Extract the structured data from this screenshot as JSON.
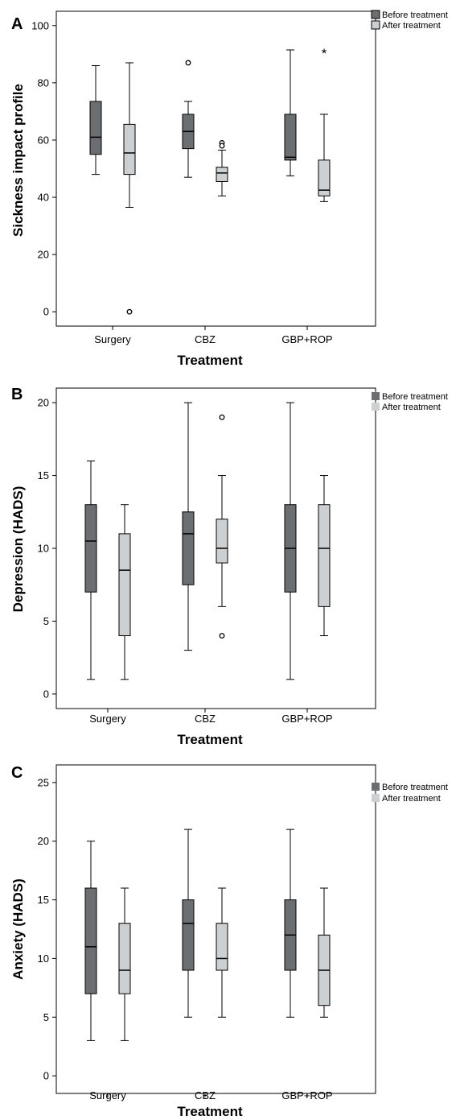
{
  "chart_data": [
    {
      "type": "box",
      "panel": "A",
      "xlabel": "Treatment",
      "ylabel": "Sickness impact profile",
      "ylim": [
        -5,
        105
      ],
      "yticks": [
        0,
        20,
        40,
        60,
        80,
        100
      ],
      "categories": [
        "Surgery",
        "CBZ",
        "GBP+ROP"
      ],
      "legend": {
        "position": "top-right",
        "entries": [
          "Before treatment",
          "After treatment"
        ]
      },
      "series": [
        {
          "name": "Before treatment",
          "color": "#6b6f72",
          "boxes": [
            {
              "min": 48,
              "q1": 55,
              "median": 61,
              "q3": 73.5,
              "max": 86,
              "outliers": [],
              "extremes": []
            },
            {
              "min": 47,
              "q1": 57,
              "median": 63,
              "q3": 69,
              "max": 73.5,
              "outliers": [
                87
              ],
              "extremes": []
            },
            {
              "min": 47.5,
              "q1": 53,
              "median": 54,
              "q3": 69,
              "max": 91.5,
              "outliers": [],
              "extremes": []
            }
          ]
        },
        {
          "name": "After treatment",
          "color": "#cdd0d3",
          "boxes": [
            {
              "min": 36.5,
              "q1": 48,
              "median": 55.5,
              "q3": 65.5,
              "max": 87,
              "outliers": [
                0
              ],
              "extremes": []
            },
            {
              "min": 40.5,
              "q1": 45.5,
              "median": 48.5,
              "q3": 50.5,
              "max": 56.5,
              "outliers": [
                59,
                58
              ],
              "extremes": []
            },
            {
              "min": 38.5,
              "q1": 40.5,
              "median": 42.5,
              "q3": 53,
              "max": 69,
              "outliers": [],
              "extremes": [
                91
              ]
            }
          ]
        }
      ]
    },
    {
      "type": "box",
      "panel": "B",
      "xlabel": "Treatment",
      "ylabel": "Depression (HADS)",
      "ylim": [
        -1,
        21
      ],
      "yticks": [
        0,
        5,
        10,
        15,
        20
      ],
      "categories": [
        "Surgery",
        "CBZ",
        "GBP+ROP"
      ],
      "legend": {
        "position": "top-right",
        "entries": [
          "Before treatment",
          "After treatment"
        ]
      },
      "series": [
        {
          "name": "Before treatment",
          "color": "#6b6f72",
          "boxes": [
            {
              "min": 1,
              "q1": 7,
              "median": 10.5,
              "q3": 13,
              "max": 16,
              "outliers": [],
              "extremes": []
            },
            {
              "min": 3,
              "q1": 7.5,
              "median": 11,
              "q3": 12.5,
              "max": 20,
              "outliers": [],
              "extremes": []
            },
            {
              "min": 1,
              "q1": 7,
              "median": 10,
              "q3": 13,
              "max": 20,
              "outliers": [],
              "extremes": []
            }
          ]
        },
        {
          "name": "After treatment",
          "color": "#cdd0d3",
          "boxes": [
            {
              "min": 1,
              "q1": 4,
              "median": 8.5,
              "q3": 11,
              "max": 13,
              "outliers": [],
              "extremes": []
            },
            {
              "min": 6,
              "q1": 9,
              "median": 10,
              "q3": 12,
              "max": 15,
              "outliers": [
                19,
                4
              ],
              "extremes": []
            },
            {
              "min": 4,
              "q1": 6,
              "median": 10,
              "q3": 13,
              "max": 15,
              "outliers": [],
              "extremes": []
            }
          ]
        }
      ]
    },
    {
      "type": "box",
      "panel": "C",
      "xlabel": "Treatment",
      "ylabel": "Anxiety (HADS)",
      "ylim": [
        -1.5,
        26.5
      ],
      "yticks": [
        0,
        5,
        10,
        15,
        20,
        25
      ],
      "categories": [
        "Surgery",
        "CBZ",
        "GBP+ROP"
      ],
      "legend": {
        "position": "top-right",
        "entries": [
          "Before treatment",
          "After treatment"
        ]
      },
      "series": [
        {
          "name": "Before treatment",
          "color": "#6b6f72",
          "boxes": [
            {
              "min": 3,
              "q1": 7,
              "median": 11,
              "q3": 16,
              "max": 20,
              "outliers": [],
              "extremes": []
            },
            {
              "min": 5,
              "q1": 9,
              "median": 13,
              "q3": 15,
              "max": 21,
              "outliers": [],
              "extremes": []
            },
            {
              "min": 5,
              "q1": 9,
              "median": 12,
              "q3": 15,
              "max": 21,
              "outliers": [],
              "extremes": []
            }
          ]
        },
        {
          "name": "After treatment",
          "color": "#cdd0d3",
          "boxes": [
            {
              "min": 3,
              "q1": 7,
              "median": 9,
              "q3": 13,
              "max": 16,
              "outliers": [],
              "extremes": []
            },
            {
              "min": 5,
              "q1": 9,
              "median": 10,
              "q3": 13,
              "max": 16,
              "outliers": [],
              "extremes": []
            },
            {
              "min": 5,
              "q1": 6,
              "median": 9,
              "q3": 12,
              "max": 16,
              "outliers": [],
              "extremes": []
            }
          ]
        }
      ]
    }
  ]
}
